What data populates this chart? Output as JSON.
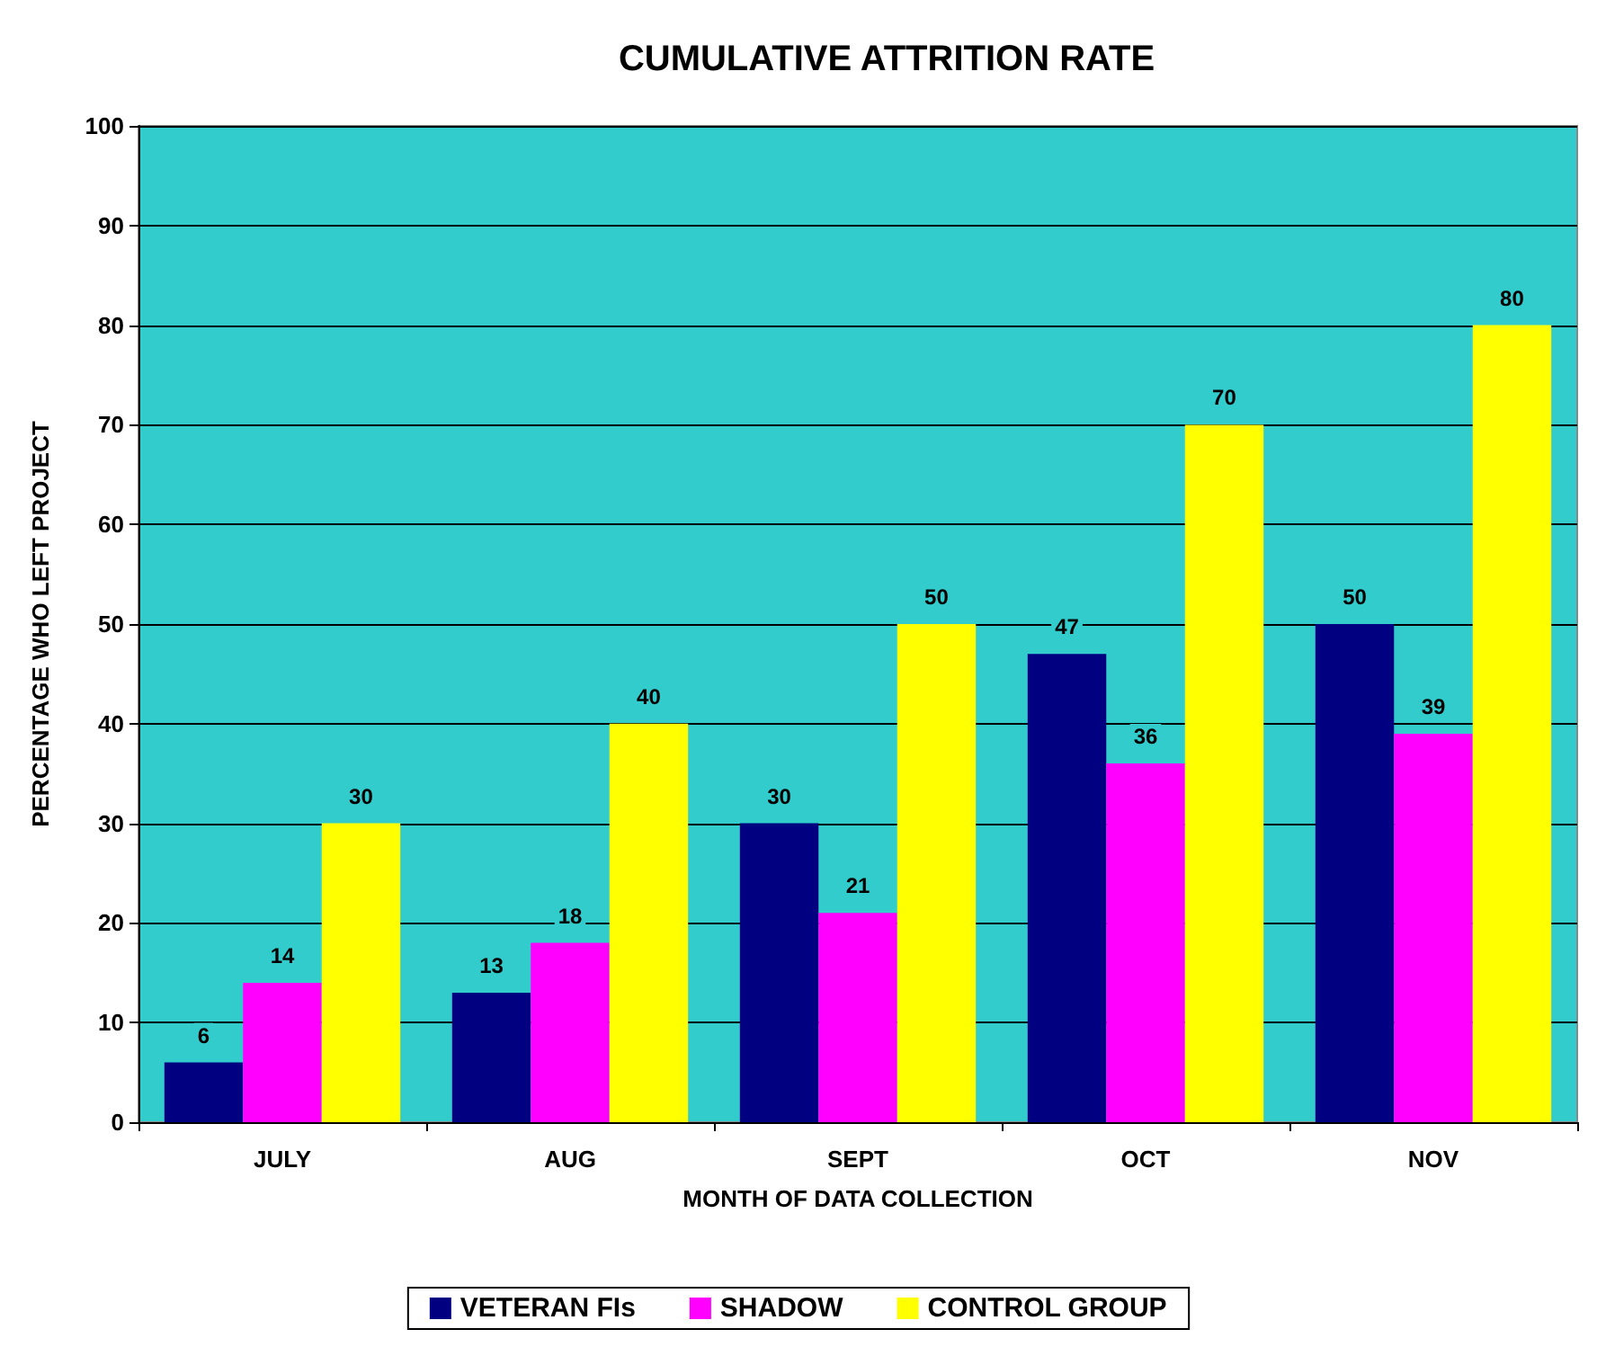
{
  "chart_data": {
    "type": "bar",
    "title": "CUMULATIVE ATTRITION RATE",
    "xlabel": "MONTH OF DATA COLLECTION",
    "ylabel": "PERCENTAGE WHO LEFT PROJECT",
    "categories": [
      "JULY",
      "AUG",
      "SEPT",
      "OCT",
      "NOV"
    ],
    "series": [
      {
        "name": "VETERAN FIs",
        "color": "#000080",
        "values": [
          6,
          13,
          30,
          47,
          50
        ]
      },
      {
        "name": "SHADOW",
        "color": "#ff00ff",
        "values": [
          14,
          18,
          21,
          36,
          39
        ]
      },
      {
        "name": "CONTROL GROUP",
        "color": "#ffff00",
        "values": [
          30,
          40,
          50,
          70,
          80
        ]
      }
    ],
    "ylim": [
      0,
      100
    ],
    "yticks": [
      0,
      10,
      20,
      30,
      40,
      50,
      60,
      70,
      80,
      90,
      100
    ],
    "grid": "y",
    "legend": "bottom",
    "data_labels": true
  }
}
